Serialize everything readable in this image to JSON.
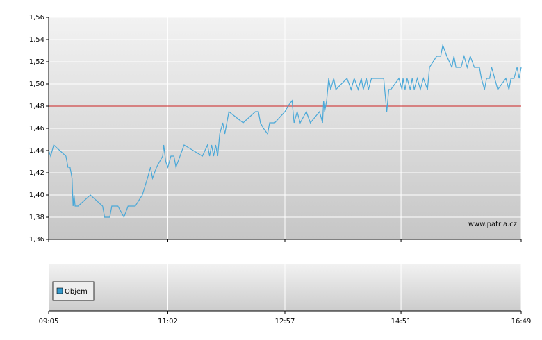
{
  "chart_data": {
    "type": "line",
    "x": [
      "09:05",
      "09:07",
      "09:10",
      "09:22",
      "09:24",
      "09:26",
      "09:28",
      "09:29",
      "09:30",
      "09:31",
      "09:34",
      "09:46",
      "09:58",
      "10:00",
      "10:05",
      "10:07",
      "10:13",
      "10:19",
      "10:23",
      "10:30",
      "10:37",
      "10:42",
      "10:45",
      "10:47",
      "10:51",
      "10:57",
      "10:58",
      "11:00",
      "11:02",
      "11:05",
      "11:08",
      "11:10",
      "11:18",
      "11:36",
      "11:41",
      "11:43",
      "11:45",
      "11:47",
      "11:49",
      "11:51",
      "11:53",
      "11:56",
      "11:58",
      "12:02",
      "12:16",
      "12:28",
      "12:31",
      "12:33",
      "12:36",
      "12:40",
      "12:42",
      "12:47",
      "12:57",
      "13:00",
      "13:04",
      "13:06",
      "13:09",
      "13:12",
      "13:18",
      "13:22",
      "13:31",
      "13:34",
      "13:35",
      "13:36",
      "13:38",
      "13:40",
      "13:42",
      "13:45",
      "13:47",
      "13:58",
      "14:02",
      "14:05",
      "14:09",
      "14:12",
      "14:14",
      "14:17",
      "14:19",
      "14:22",
      "14:34",
      "14:36",
      "14:37",
      "14:39",
      "14:41",
      "14:49",
      "14:52",
      "14:53",
      "14:55",
      "14:57",
      "15:00",
      "15:02",
      "15:04",
      "15:07",
      "15:10",
      "15:13",
      "15:17",
      "15:19",
      "15:26",
      "15:30",
      "15:32",
      "15:36",
      "15:41",
      "15:43",
      "15:45",
      "15:50",
      "15:53",
      "15:56",
      "15:59",
      "16:03",
      "16:08",
      "16:10",
      "16:13",
      "16:15",
      "16:18",
      "16:20",
      "16:23",
      "16:26",
      "16:34",
      "16:37",
      "16:39",
      "16:42",
      "16:45",
      "16:47",
      "16:49"
    ],
    "series": [
      {
        "color": "#4aa8d8",
        "values": [
          1.44,
          1.435,
          1.445,
          1.435,
          1.425,
          1.425,
          1.415,
          1.39,
          1.4,
          1.39,
          1.39,
          1.4,
          1.39,
          1.38,
          1.38,
          1.39,
          1.39,
          1.38,
          1.39,
          1.39,
          1.4,
          1.415,
          1.425,
          1.415,
          1.425,
          1.435,
          1.445,
          1.43,
          1.425,
          1.435,
          1.435,
          1.425,
          1.445,
          1.435,
          1.445,
          1.435,
          1.445,
          1.435,
          1.445,
          1.435,
          1.455,
          1.465,
          1.455,
          1.475,
          1.465,
          1.475,
          1.475,
          1.465,
          1.46,
          1.455,
          1.465,
          1.465,
          1.475,
          1.48,
          1.485,
          1.465,
          1.475,
          1.465,
          1.475,
          1.465,
          1.475,
          1.465,
          1.485,
          1.475,
          1.485,
          1.505,
          1.495,
          1.505,
          1.495,
          1.505,
          1.495,
          1.505,
          1.495,
          1.505,
          1.495,
          1.505,
          1.495,
          1.505,
          1.505,
          1.485,
          1.475,
          1.495,
          1.495,
          1.505,
          1.495,
          1.505,
          1.495,
          1.505,
          1.495,
          1.505,
          1.495,
          1.505,
          1.495,
          1.505,
          1.495,
          1.515,
          1.525,
          1.525,
          1.535,
          1.525,
          1.515,
          1.525,
          1.515,
          1.515,
          1.525,
          1.515,
          1.525,
          1.515,
          1.515,
          1.505,
          1.495,
          1.505,
          1.505,
          1.515,
          1.505,
          1.495,
          1.505,
          1.495,
          1.505,
          1.505,
          1.515,
          1.505,
          1.515
        ]
      }
    ],
    "xlim": [
      "09:05",
      "16:49"
    ],
    "xticks": [
      "09:05",
      "11:02",
      "12:57",
      "14:51",
      "16:49"
    ],
    "ylim": [
      1.36,
      1.56
    ],
    "yticks": [
      {
        "value": 1.36,
        "label": "1,36"
      },
      {
        "value": 1.38,
        "label": "1,38"
      },
      {
        "value": 1.4,
        "label": "1,40"
      },
      {
        "value": 1.42,
        "label": "1,42"
      },
      {
        "value": 1.44,
        "label": "1,44"
      },
      {
        "value": 1.46,
        "label": "1,46"
      },
      {
        "value": 1.48,
        "label": "1,48"
      },
      {
        "value": 1.5,
        "label": "1,50"
      },
      {
        "value": 1.52,
        "label": "1,52"
      },
      {
        "value": 1.54,
        "label": "1,54"
      },
      {
        "value": 1.56,
        "label": "1,56"
      }
    ],
    "grid": true,
    "reference_line": {
      "value": 1.48,
      "color": "#cc2222"
    },
    "annotation": "www.patria.cz",
    "volume_legend": {
      "name": "Objem",
      "color": "#3399cc"
    }
  }
}
